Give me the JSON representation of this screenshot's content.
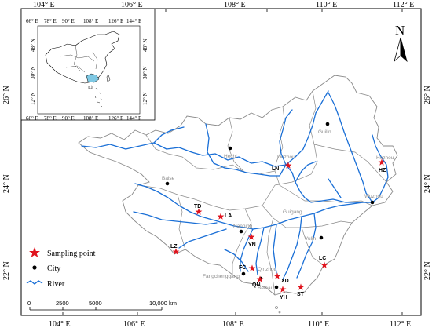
{
  "axes": {
    "longitude_labels": [
      "104° E",
      "106° E",
      "108° E",
      "110° E",
      "112° E"
    ],
    "latitude_labels": [
      "26° N",
      "24° N",
      "22° N"
    ]
  },
  "inset": {
    "top_labels": [
      "66° E",
      "78° E",
      "90° E",
      "108° E",
      "126° E",
      "144° E"
    ],
    "bottom_labels": [
      "66° E",
      "78° E",
      "90° E",
      "108° E",
      "126° E",
      "144° E"
    ],
    "left_labels": [
      "48° N",
      "30° N",
      "12° N"
    ],
    "right_labels": [
      "48° N",
      "30° N",
      "12° N"
    ],
    "highlight_color": "#7ec8e3"
  },
  "north_arrow": {
    "label": "N"
  },
  "cities": [
    {
      "name": "Hechi"
    },
    {
      "name": "Liuzhou"
    },
    {
      "name": "Guilin"
    },
    {
      "name": "Hezhou"
    },
    {
      "name": "Baise"
    },
    {
      "name": "Nanning"
    },
    {
      "name": "Guigang"
    },
    {
      "name": "Yulin"
    },
    {
      "name": "Qinzhou"
    },
    {
      "name": "Fangchenggang"
    },
    {
      "name": "Beihai"
    },
    {
      "name": "Wuzhou"
    }
  ],
  "sampling_points": [
    {
      "code": "LN"
    },
    {
      "code": "HZ"
    },
    {
      "code": "TD"
    },
    {
      "code": "LA"
    },
    {
      "code": "YN"
    },
    {
      "code": "LZ"
    },
    {
      "code": "FC"
    },
    {
      "code": "QN"
    },
    {
      "code": "XD"
    },
    {
      "code": "YH"
    },
    {
      "code": "ST"
    },
    {
      "code": "LC"
    }
  ],
  "legend": [
    {
      "symbol": "star",
      "label": "Sampling point",
      "color": "#e0141e"
    },
    {
      "symbol": "dot",
      "label": "City",
      "color": "#000000"
    },
    {
      "symbol": "line",
      "label": "River",
      "color": "#1a6fd6"
    }
  ],
  "scale_bar": {
    "ticks": [
      "0",
      "2500",
      "5000",
      "10,000 km"
    ]
  },
  "colors": {
    "river": "#1a6fd6",
    "sampling_point": "#e0141e",
    "boundary": "#8a8a8a"
  }
}
